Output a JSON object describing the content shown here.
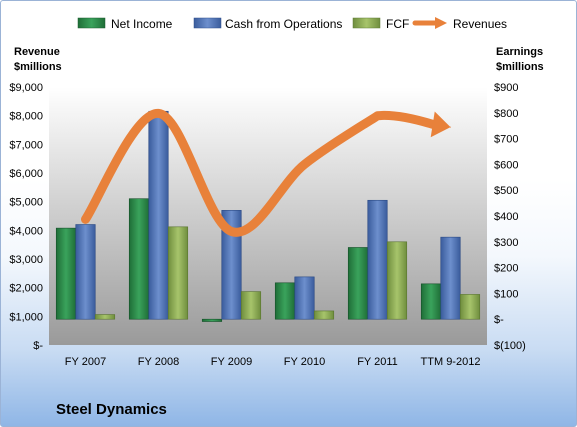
{
  "chart_data": {
    "type": "bar",
    "title": "",
    "company": "Steel Dynamics",
    "categories": [
      "FY 2007",
      "FY 2008",
      "FY 2009",
      "FY 2010",
      "FY 2011",
      "TTM 9-2012"
    ],
    "left_axis": {
      "label_line1": "Revenue",
      "label_line2": "$millions",
      "ylim": [
        0,
        9000
      ],
      "ticks": [
        0,
        1000,
        2000,
        3000,
        4000,
        5000,
        6000,
        7000,
        8000,
        9000
      ],
      "tick_labels": [
        "$-",
        "$1,000",
        "$2,000",
        "$3,000",
        "$4,000",
        "$5,000",
        "$6,000",
        "$7,000",
        "$8,000",
        "$9,000"
      ]
    },
    "right_axis": {
      "label_line1": "Earnings",
      "label_line2": "$millions",
      "ylim": [
        -100,
        900
      ],
      "ticks": [
        -100,
        0,
        100,
        200,
        300,
        400,
        500,
        600,
        700,
        800,
        900
      ],
      "tick_labels": [
        "$(100)",
        "$-",
        "$100",
        "$200",
        "$300",
        "$400",
        "$500",
        "$600",
        "$700",
        "$800",
        "$900"
      ]
    },
    "series": [
      {
        "name": "Net Income",
        "type": "bar",
        "axis": "right",
        "color": "#2e8b4a",
        "values": [
          353,
          467,
          -9,
          141,
          278,
          137
        ]
      },
      {
        "name": "Cash from Operations",
        "type": "bar",
        "axis": "right",
        "color": "#4f74b8",
        "values": [
          367,
          806,
          422,
          164,
          461,
          318
        ]
      },
      {
        "name": "FCF",
        "type": "bar",
        "axis": "right",
        "color": "#8cab55",
        "values": [
          18,
          358,
          107,
          32,
          300,
          96
        ]
      },
      {
        "name": "Revenues",
        "type": "line",
        "axis": "left",
        "color": "#e8813a",
        "values": [
          4384,
          8080,
          3960,
          6301,
          7998,
          7600
        ]
      }
    ],
    "grid": false,
    "legend_position": "top"
  }
}
